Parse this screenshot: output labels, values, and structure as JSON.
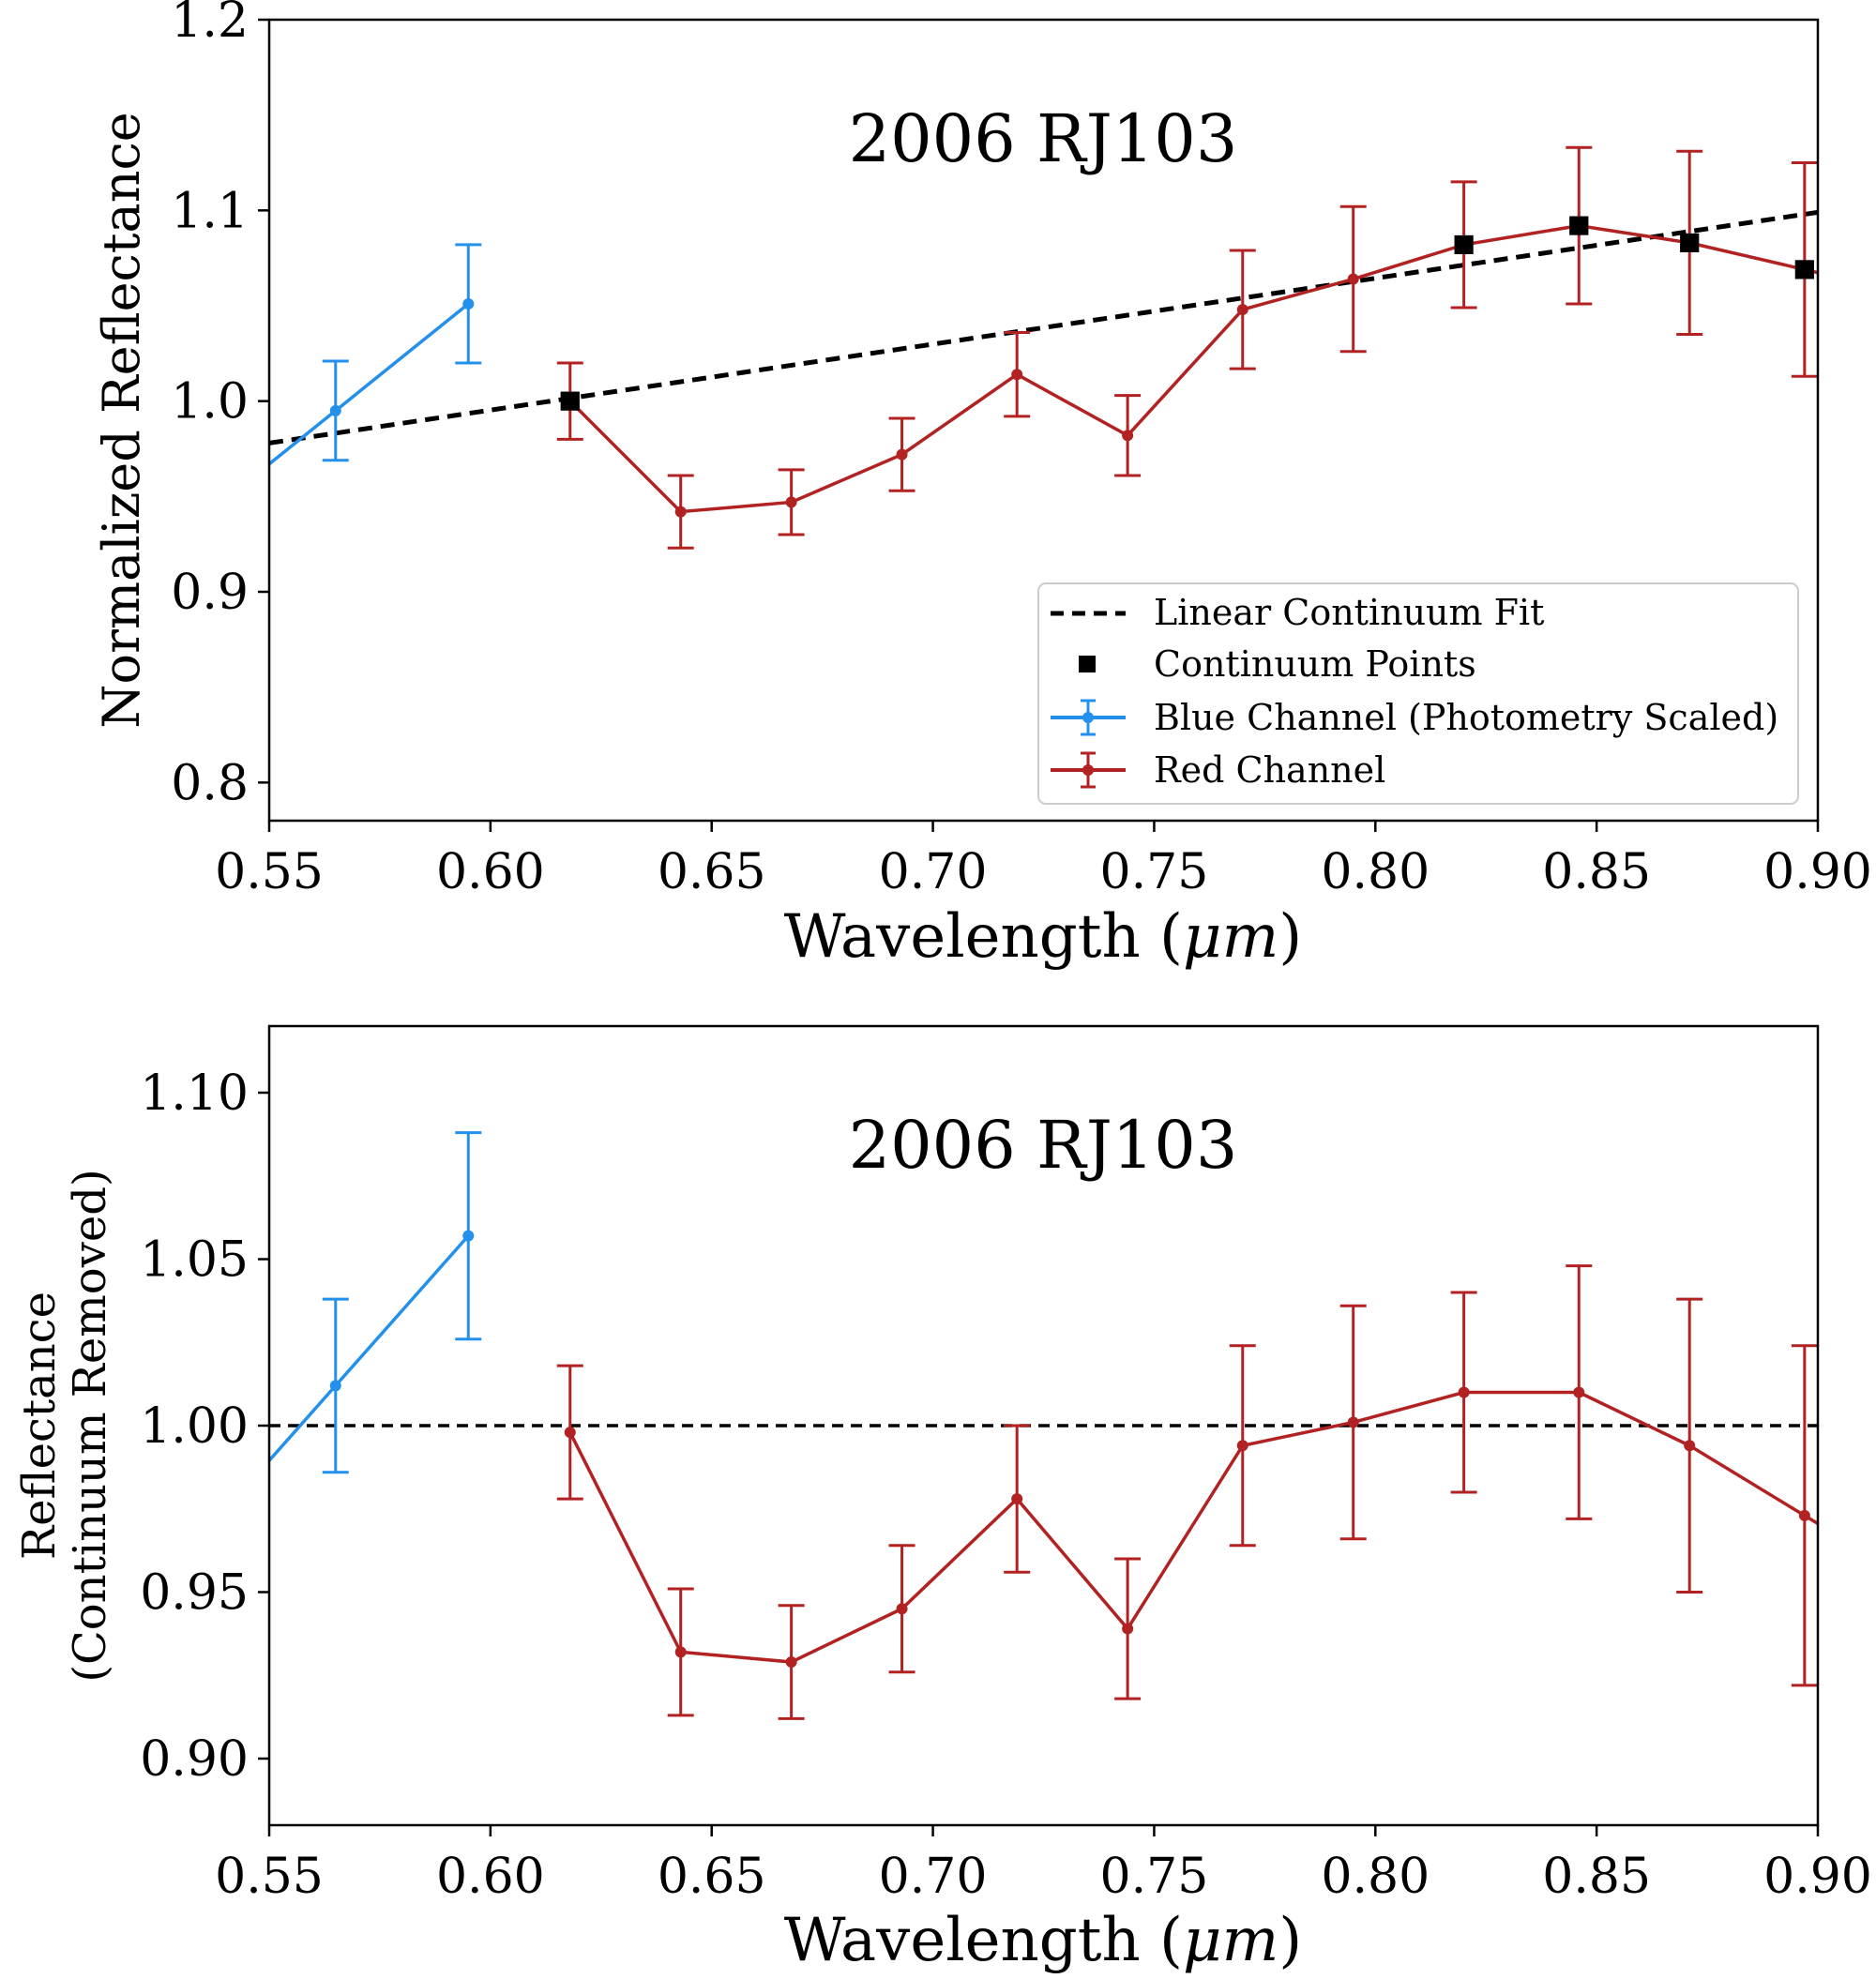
{
  "colors": {
    "blue": "#2390ec",
    "red": "#b22222",
    "black": "#000000"
  },
  "chart_data": [
    {
      "type": "line",
      "title": "2006 RJ103",
      "xlabel": "Wavelength (",
      "xlabel_unit": "μm",
      "xlabel_suffix": ")",
      "ylabel": "Normalized Reflectance",
      "xlim": [
        0.55,
        0.9
      ],
      "ylim": [
        0.78,
        1.2
      ],
      "xticks": [
        "0.55",
        "0.60",
        "0.65",
        "0.70",
        "0.75",
        "0.80",
        "0.85",
        "0.90"
      ],
      "yticks": [
        "0.8",
        "0.9",
        "1.0",
        "1.1",
        "1.2"
      ],
      "legend_position": "lower-right",
      "legend": {
        "fit": "Linear Continuum Fit",
        "points": "Continuum Points",
        "blue": "Blue Channel (Photometry Scaled)",
        "red": "Red Channel"
      },
      "series": [
        {
          "name": "Linear Continuum Fit",
          "style": "dashed",
          "x": [
            0.55,
            0.9
          ],
          "y": [
            0.978,
            1.099
          ]
        },
        {
          "name": "Continuum Points",
          "style": "square-markers",
          "x": [
            0.618,
            0.82,
            0.846,
            0.871,
            0.897
          ],
          "y": [
            1.0,
            1.082,
            1.092,
            1.083,
            1.069
          ]
        },
        {
          "name": "Blue Channel (Photometry Scaled)",
          "style": "errorbar",
          "x": [
            0.565,
            0.595
          ],
          "y": [
            0.995,
            1.051
          ],
          "yerr": [
            0.026,
            0.031
          ],
          "line_extends_to": {
            "x": [
              0.55,
              0.9
            ],
            "y": [
              0.972,
              1.058
            ]
          }
        },
        {
          "name": "Red Channel",
          "style": "errorbar",
          "x": [
            0.618,
            0.643,
            0.668,
            0.693,
            0.719,
            0.744,
            0.77,
            0.795,
            0.82,
            0.846,
            0.871,
            0.897
          ],
          "y": [
            1.0,
            0.942,
            0.947,
            0.972,
            1.014,
            0.982,
            1.048,
            1.064,
            1.082,
            1.092,
            1.083,
            1.069
          ],
          "yerr": [
            0.02,
            0.019,
            0.017,
            0.019,
            0.022,
            0.021,
            0.031,
            0.038,
            0.033,
            0.041,
            0.048,
            0.056
          ],
          "line_extends_to": {
            "x": [
              0.55,
              0.9
            ],
            "y": [
              0.972,
              1.058
            ]
          }
        }
      ]
    },
    {
      "type": "line",
      "title": "2006 RJ103",
      "xlabel": "Wavelength (",
      "xlabel_unit": "μm",
      "xlabel_suffix": ")",
      "ylabel_line1": "Reflectance",
      "ylabel_line2": "(Continuum Removed)",
      "xlim": [
        0.55,
        0.9
      ],
      "ylim": [
        0.88,
        1.12
      ],
      "xticks": [
        "0.55",
        "0.60",
        "0.65",
        "0.70",
        "0.75",
        "0.80",
        "0.85",
        "0.90"
      ],
      "yticks": [
        "0.90",
        "0.95",
        "1.00",
        "1.05",
        "1.10"
      ],
      "series": [
        {
          "name": "reference",
          "style": "dashed",
          "x": [
            0.55,
            0.9
          ],
          "y": [
            1.0,
            1.0
          ]
        },
        {
          "name": "Blue Channel (Photometry Scaled)",
          "style": "errorbar",
          "x": [
            0.565,
            0.595
          ],
          "y": [
            1.012,
            1.057
          ],
          "yerr": [
            0.026,
            0.031
          ]
        },
        {
          "name": "Red Channel",
          "style": "errorbar",
          "x": [
            0.618,
            0.643,
            0.668,
            0.693,
            0.719,
            0.744,
            0.77,
            0.795,
            0.82,
            0.846,
            0.871,
            0.897
          ],
          "y": [
            0.998,
            0.932,
            0.929,
            0.945,
            0.978,
            0.939,
            0.994,
            1.001,
            1.01,
            1.01,
            0.994,
            0.973
          ],
          "yerr": [
            0.02,
            0.019,
            0.017,
            0.019,
            0.022,
            0.021,
            0.03,
            0.035,
            0.03,
            0.038,
            0.044,
            0.051
          ]
        }
      ]
    }
  ]
}
